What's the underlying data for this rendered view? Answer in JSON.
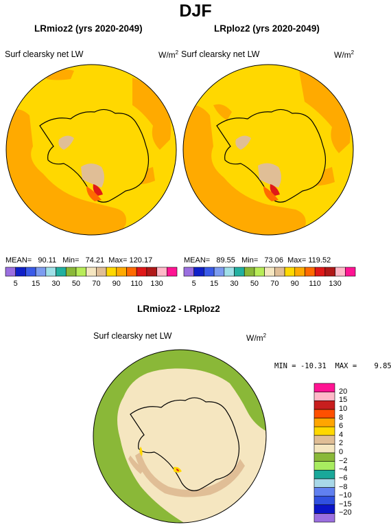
{
  "season": "DJF",
  "panels": [
    {
      "title": "LRmioz2 (yrs 2020-2049)",
      "variable": "Surf clearsky net LW",
      "units": "W/m",
      "units_exp": "2",
      "stats": {
        "mean_label": "MEAN=",
        "mean": "90.11",
        "min_label": "Min=",
        "min": "74.21",
        "max_label": "Max=",
        "max": "120.17"
      }
    },
    {
      "title": "LRploz2 (yrs 2020-2049)",
      "variable": "Surf clearsky net LW",
      "units": "W/m",
      "units_exp": "2",
      "stats": {
        "mean_label": "MEAN=",
        "mean": "89.55",
        "min_label": "Min=",
        "min": "73.06",
        "max_label": "Max=",
        "max": "119.52"
      }
    }
  ],
  "abs_colorbar": {
    "colors": [
      "#9b6fe0",
      "#1020c8",
      "#3a5ae8",
      "#7c9cf0",
      "#9fe0e8",
      "#22b0a0",
      "#8ab838",
      "#b8ec58",
      "#f5e6c0",
      "#e0be96",
      "#ffd800",
      "#ffaa00",
      "#ff6a00",
      "#e01818",
      "#b01818",
      "#ffb8c8",
      "#ff1493"
    ],
    "labels": [
      "5",
      "15",
      "30",
      "50",
      "70",
      "90",
      "110",
      "130"
    ]
  },
  "diff_panel": {
    "title": "LRmioz2 - LRploz2",
    "variable": "Surf clearsky net LW",
    "units": "W/m",
    "units_exp": "2",
    "stats": {
      "min_label": "MIN =",
      "min": "-10.31",
      "max_label": "MAX =",
      "max": "9.85"
    }
  },
  "diff_colorbar": {
    "colors": [
      "#9b6fe0",
      "#0a14c8",
      "#3050e0",
      "#6080f0",
      "#a8d8e8",
      "#1aa89a",
      "#a8ec60",
      "#8ab838",
      "#f5e6c0",
      "#e0be96",
      "#ffd800",
      "#ffa500",
      "#ff5000",
      "#c81e1e",
      "#ffb8c8",
      "#ff1493"
    ],
    "labels": [
      "20",
      "15",
      "10",
      "8",
      "6",
      "4",
      "2",
      "0",
      "−2",
      "−4",
      "−6",
      "−8",
      "−10",
      "−15",
      "−20"
    ]
  },
  "map_colors": {
    "yellow": "#ffd800",
    "orange": "#ffaa00",
    "tan": "#e0be96",
    "red": "#e01818",
    "cream": "#f5e6c0",
    "green": "#8ab838",
    "dkorange": "#ff6a00"
  }
}
